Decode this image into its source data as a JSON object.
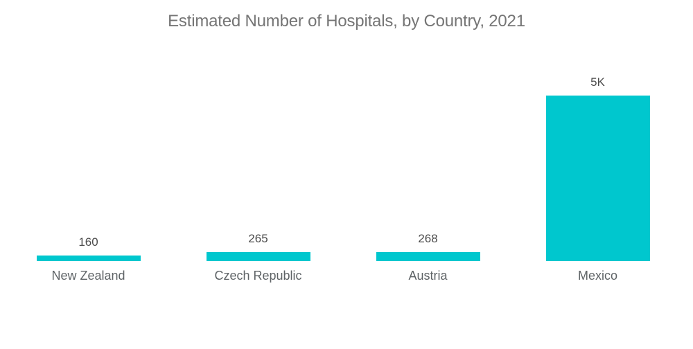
{
  "title": "Estimated Number of Hospitals, by Country, 2021",
  "colors": {
    "background": "#FFFFFF",
    "bar": "#00C7CE",
    "title_text": "#757575",
    "value_label_text": "#4B4B4B",
    "category_label_text": "#5E6366"
  },
  "chart_data": {
    "type": "bar",
    "title": "Estimated Number of Hospitals, by Country, 2021",
    "categories": [
      "New Zealand",
      "Czech Republic",
      "Austria",
      "Mexico"
    ],
    "values": [
      160,
      265,
      268,
      5000
    ],
    "value_labels": [
      "160",
      "265",
      "268",
      "5K"
    ],
    "xlabel": "",
    "ylabel": "",
    "ylim": [
      0,
      5000
    ],
    "grid": false,
    "legend": false,
    "axes_visible": false,
    "bar_color": "#00C7CE",
    "value_label_position": "above-bar",
    "category_label_position": "below-bar"
  }
}
